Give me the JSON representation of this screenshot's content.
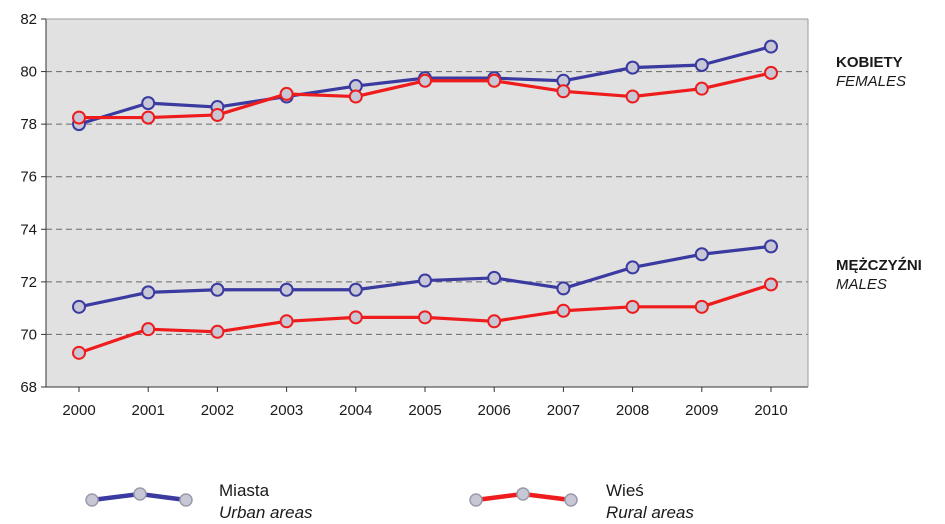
{
  "chart_data": {
    "type": "line",
    "x": [
      2000,
      2001,
      2002,
      2003,
      2004,
      2005,
      2006,
      2007,
      2008,
      2009,
      2010
    ],
    "ylim": [
      68,
      82
    ],
    "yticks": [
      68,
      70,
      72,
      74,
      76,
      78,
      80,
      82
    ],
    "grid": "horizontal dashed",
    "colors": {
      "urban": "#3a3aa0",
      "rural": "#ee1c1c",
      "marker_fill": "#c7c7d6",
      "plot_bg": "#e1e1e1"
    },
    "series": [
      {
        "key": "urban_females",
        "color_key": "urban",
        "values": [
          78.0,
          78.8,
          78.65,
          79.05,
          79.45,
          79.75,
          79.75,
          79.65,
          80.15,
          80.25,
          80.95
        ]
      },
      {
        "key": "rural_females",
        "color_key": "rural",
        "values": [
          78.25,
          78.25,
          78.35,
          79.15,
          79.05,
          79.65,
          79.65,
          79.25,
          79.05,
          79.35,
          79.95
        ]
      },
      {
        "key": "urban_males",
        "color_key": "urban",
        "values": [
          71.05,
          71.6,
          71.7,
          71.7,
          71.7,
          72.05,
          72.15,
          71.75,
          72.55,
          73.05,
          73.35
        ]
      },
      {
        "key": "rural_males",
        "color_key": "rural",
        "values": [
          69.3,
          70.2,
          70.1,
          70.5,
          70.65,
          70.65,
          70.5,
          70.9,
          71.05,
          71.05,
          71.9
        ]
      }
    ],
    "group_labels": [
      {
        "pl": "KOBIETY",
        "en": "FEMALES"
      },
      {
        "pl": "MĘŻCZYŹNI",
        "en": "MALES"
      }
    ],
    "legend": [
      {
        "pl": "Miasta",
        "en": "Urban areas",
        "color_key": "urban"
      },
      {
        "pl": "Wieś",
        "en": "Rural areas",
        "color_key": "rural"
      }
    ],
    "legend_position": "bottom"
  }
}
